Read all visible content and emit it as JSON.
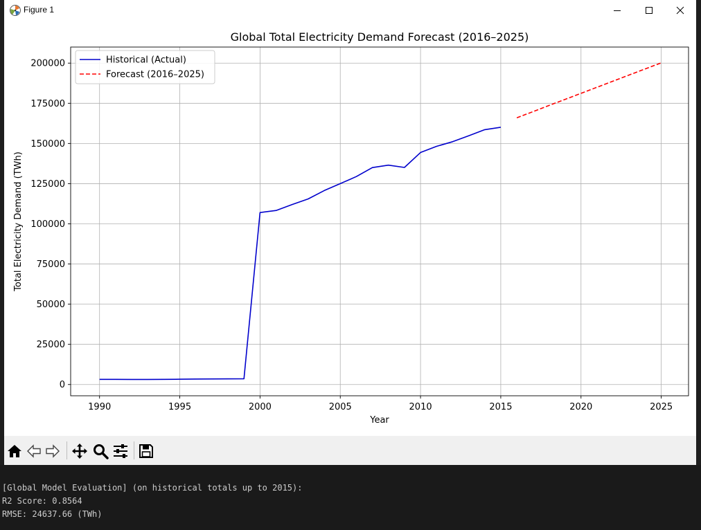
{
  "window": {
    "title": "Figure 1"
  },
  "icons": {
    "app": "matplotlib-icon",
    "minimize": "minimize-icon",
    "maximize": "maximize-icon",
    "close": "close-icon"
  },
  "toolbar": {
    "buttons": [
      "home-icon",
      "back-icon",
      "forward-icon",
      "pan-icon",
      "zoom-icon",
      "configure-subplots-icon",
      "save-icon"
    ]
  },
  "terminal": {
    "lines": [
      "[Global Model Evaluation] (on historical totals up to 2015):",
      "R2 Score: 0.8564",
      "RMSE: 24637.66 (TWh)"
    ]
  },
  "chart_data": {
    "type": "line",
    "title": "Global Total Electricity Demand Forecast (2016–2025)",
    "xlabel": "Year",
    "ylabel": "Total Electricity Demand (TWh)",
    "xlim": [
      1988.2,
      2026.7
    ],
    "ylim": [
      -7000,
      210000
    ],
    "xticks": [
      1990,
      1995,
      2000,
      2005,
      2010,
      2015,
      2020,
      2025
    ],
    "yticks": [
      0,
      25000,
      50000,
      75000,
      100000,
      125000,
      150000,
      175000,
      200000
    ],
    "grid": true,
    "legend_position": "upper-left",
    "series": [
      {
        "name": "Historical (Actual)",
        "color": "#0000cc",
        "style": "solid",
        "x": [
          1990,
          1991,
          1992,
          1993,
          1994,
          1995,
          1996,
          1997,
          1998,
          1999,
          2000,
          2001,
          2002,
          2003,
          2004,
          2005,
          2006,
          2007,
          2008,
          2009,
          2010,
          2011,
          2012,
          2013,
          2014,
          2015
        ],
        "y": [
          3200,
          3200,
          3150,
          3150,
          3200,
          3300,
          3400,
          3450,
          3500,
          3600,
          107000,
          108300,
          112000,
          115500,
          120700,
          125000,
          129400,
          135000,
          136500,
          135100,
          144400,
          148200,
          151100,
          154800,
          158600,
          160100
        ]
      },
      {
        "name": "Forecast (2016–2025)",
        "color": "#ff0000",
        "style": "dashed",
        "x": [
          2016,
          2017,
          2018,
          2019,
          2020,
          2021,
          2022,
          2023,
          2024,
          2025
        ],
        "y": [
          166000,
          169800,
          173600,
          177400,
          181200,
          185000,
          188800,
          192600,
          196400,
          200200
        ]
      }
    ]
  }
}
